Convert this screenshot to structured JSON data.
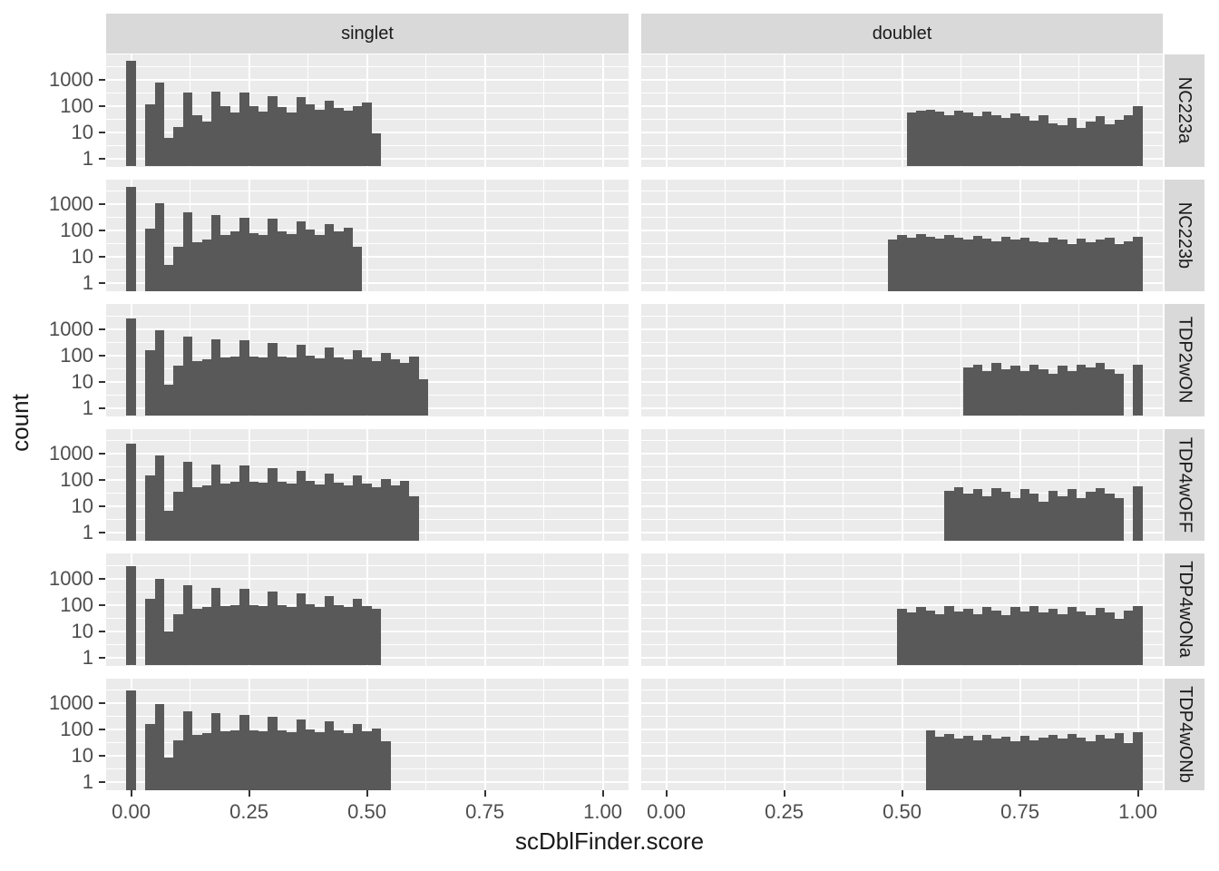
{
  "figure": {
    "kind": "faceted histogram (ggplot2 style)",
    "facet_columns": [
      "singlet",
      "doublet"
    ],
    "facet_rows": [
      "NC223a",
      "NC223b",
      "TDP2wON",
      "TDP4wOFF",
      "TDP4wONa",
      "TDP4wONb"
    ]
  },
  "axis": {
    "x_label": "scDblFinder.score",
    "y_label": "count",
    "x_tick_labels": [
      "0.00",
      "0.25",
      "0.50",
      "0.75",
      "1.00"
    ],
    "x_tick_values": [
      0,
      0.25,
      0.5,
      0.75,
      1
    ],
    "y_tick_labels": [
      "1000",
      "100",
      "10",
      "1"
    ],
    "y_tick_values": [
      1000,
      100,
      10,
      1
    ]
  },
  "colors": {
    "bar_fill": "#595959",
    "panel_background": "#EBEBEB",
    "strip_background": "#D9D9D9",
    "gridline": "#FFFFFF",
    "tick_mark": "#333333",
    "tick_label": "#4D4D4D",
    "title_text": "#1A1A1A"
  },
  "chart_data": {
    "type": "bar",
    "subtype": "histogram",
    "title": "",
    "xlabel": "scDblFinder.score",
    "ylabel": "count",
    "y_scale": "log10",
    "ylim": [
      1,
      5000
    ],
    "x_range": [
      0,
      1
    ],
    "bin_width": 0.02,
    "legend": "none",
    "grid": "on",
    "facet_columns": [
      "singlet",
      "doublet"
    ],
    "facet_rows": [
      "NC223a",
      "NC223b",
      "TDP2wON",
      "TDP4wOFF",
      "TDP4wONa",
      "TDP4wONb"
    ],
    "panels": [
      {
        "row": "NC223a",
        "facet": "singlet",
        "spike_at_0": 5000,
        "bins_start": 0.04,
        "counts": [
          110,
          750,
          6,
          16,
          330,
          45,
          25,
          350,
          95,
          55,
          320,
          100,
          60,
          230,
          90,
          55,
          210,
          115,
          70,
          160,
          85,
          65,
          95,
          135,
          9
        ]
      },
      {
        "row": "NC223a",
        "facet": "doublet",
        "bins_start": 0.52,
        "spike_at_1": 95,
        "counts": [
          55,
          65,
          70,
          60,
          45,
          65,
          55,
          40,
          60,
          45,
          35,
          50,
          40,
          28,
          45,
          22,
          18,
          35,
          15,
          25,
          40,
          20,
          30,
          45
        ]
      },
      {
        "row": "NC223b",
        "facet": "singlet",
        "spike_at_0": 4600,
        "bins_start": 0.04,
        "counts": [
          120,
          1070,
          5,
          25,
          500,
          35,
          45,
          380,
          70,
          90,
          300,
          80,
          70,
          280,
          95,
          75,
          230,
          110,
          70,
          180,
          95,
          130,
          25
        ]
      },
      {
        "row": "NC223b",
        "facet": "doublet",
        "bins_start": 0.48,
        "spike_at_1": 60,
        "counts": [
          45,
          70,
          55,
          75,
          60,
          50,
          70,
          55,
          45,
          65,
          50,
          40,
          60,
          45,
          55,
          40,
          35,
          55,
          45,
          30,
          50,
          35,
          45,
          55,
          30,
          40
        ]
      },
      {
        "row": "TDP2wON",
        "facet": "singlet",
        "spike_at_0": 2500,
        "bins_start": 0.04,
        "counts": [
          160,
          900,
          8,
          40,
          520,
          60,
          70,
          420,
          80,
          90,
          380,
          90,
          85,
          300,
          90,
          80,
          250,
          95,
          75,
          200,
          85,
          70,
          160,
          80,
          60,
          120,
          70,
          50,
          90,
          12
        ]
      },
      {
        "row": "TDP2wON",
        "facet": "doublet",
        "bins_start": 0.64,
        "spike_at_1": 45,
        "counts": [
          35,
          45,
          25,
          50,
          30,
          40,
          25,
          45,
          30,
          20,
          40,
          25,
          45,
          35,
          50,
          30,
          20
        ]
      },
      {
        "row": "TDP4wOFF",
        "facet": "singlet",
        "spike_at_0": 2400,
        "bins_start": 0.04,
        "counts": [
          150,
          850,
          7,
          35,
          480,
          55,
          65,
          400,
          75,
          85,
          350,
          85,
          80,
          280,
          85,
          75,
          230,
          90,
          70,
          180,
          80,
          65,
          150,
          75,
          55,
          110,
          65,
          90,
          25
        ]
      },
      {
        "row": "TDP4wOFF",
        "facet": "doublet",
        "bins_start": 0.6,
        "spike_at_1": 60,
        "counts": [
          40,
          55,
          30,
          45,
          25,
          50,
          35,
          20,
          45,
          30,
          15,
          40,
          25,
          45,
          20,
          35,
          50,
          30,
          20
        ]
      },
      {
        "row": "TDP4wONa",
        "facet": "singlet",
        "spike_at_0": 3000,
        "bins_start": 0.04,
        "counts": [
          170,
          950,
          10,
          45,
          550,
          70,
          80,
          450,
          90,
          100,
          400,
          100,
          90,
          320,
          100,
          85,
          270,
          105,
          85,
          220,
          95,
          80,
          170,
          90,
          70
        ]
      },
      {
        "row": "TDP4wONa",
        "facet": "doublet",
        "bins_start": 0.5,
        "spike_at_1": 90,
        "counts": [
          70,
          50,
          80,
          60,
          45,
          90,
          55,
          70,
          45,
          85,
          60,
          40,
          80,
          55,
          90,
          50,
          70,
          45,
          85,
          55,
          40,
          75,
          50,
          30,
          60
        ]
      },
      {
        "row": "TDP4wONb",
        "facet": "singlet",
        "spike_at_0": 3000,
        "bins_start": 0.04,
        "counts": [
          160,
          900,
          9,
          40,
          500,
          65,
          75,
          420,
          85,
          95,
          370,
          95,
          85,
          300,
          95,
          80,
          250,
          100,
          80,
          200,
          90,
          75,
          160,
          85,
          110,
          35
        ]
      },
      {
        "row": "TDP4wONb",
        "facet": "doublet",
        "bins_start": 0.56,
        "spike_at_1": 80,
        "counts": [
          95,
          55,
          70,
          45,
          60,
          40,
          65,
          45,
          55,
          35,
          60,
          40,
          50,
          65,
          45,
          70,
          50,
          35,
          65,
          45,
          75,
          30
        ]
      }
    ]
  }
}
